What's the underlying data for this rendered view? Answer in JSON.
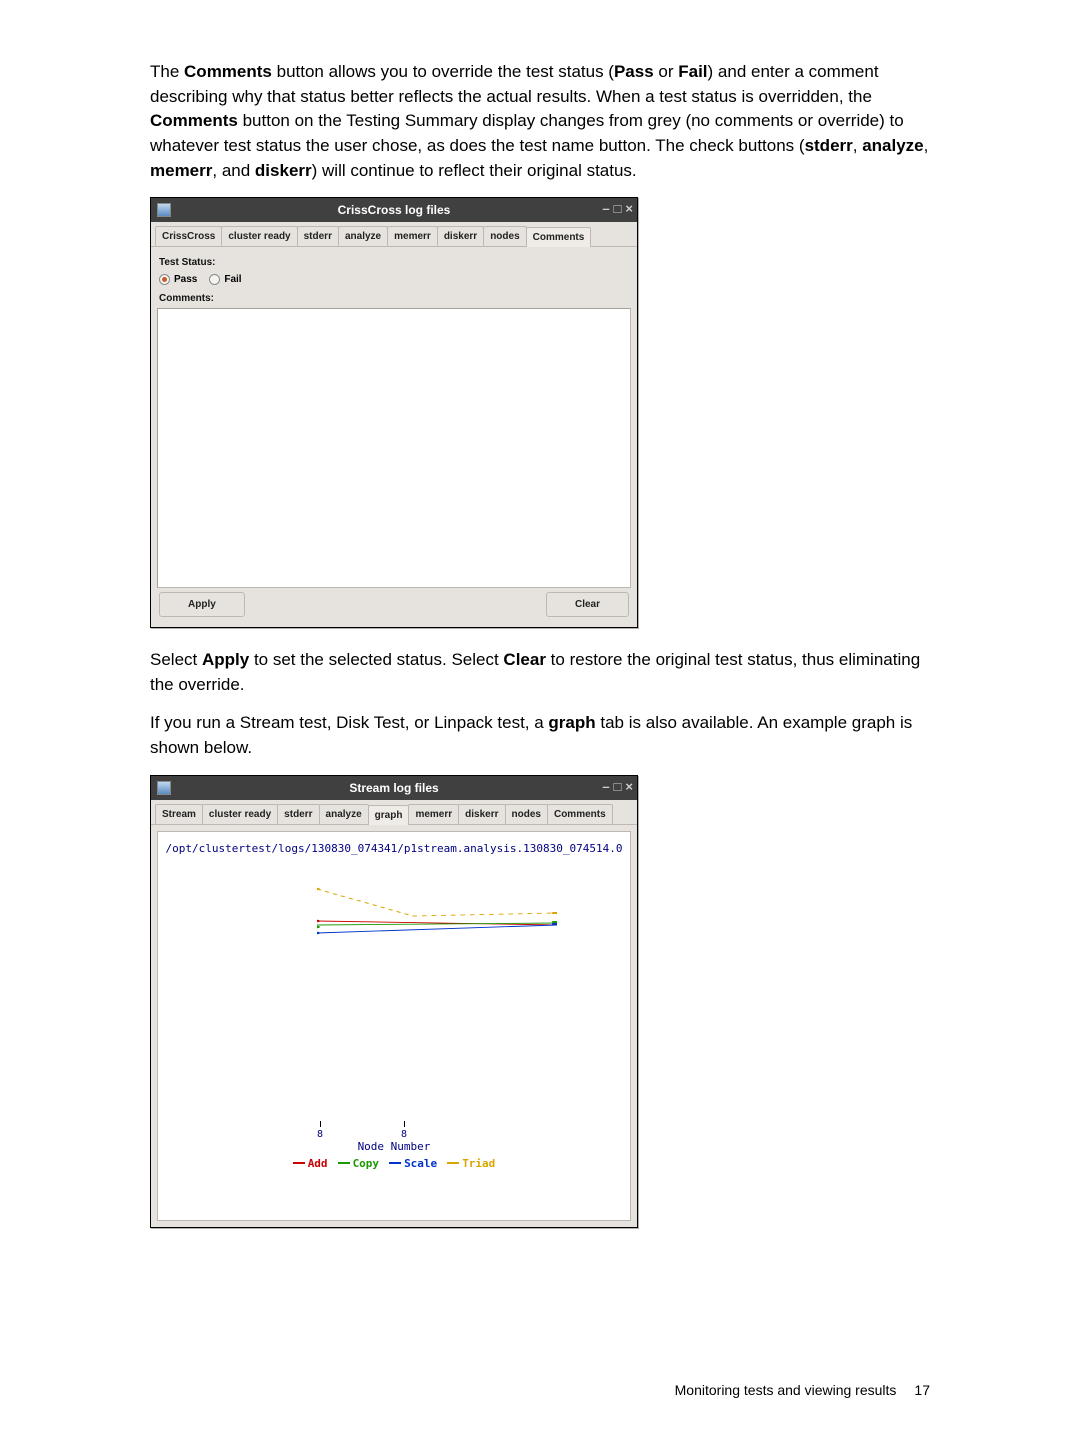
{
  "para1": {
    "t1": "The ",
    "b1": "Comments",
    "t2": " button allows you to override the test status (",
    "b2": "Pass",
    "t3": " or ",
    "b3": "Fail",
    "t4": ") and enter a comment describing why that status better reflects the actual results. When a test status is overridden, the ",
    "b4": "Comments",
    "t5": " button on the Testing Summary display changes from grey (no comments or override) to whatever test status the user chose, as does the test name button. The check buttons (",
    "b5": "stderr",
    "t6": ", ",
    "b6": "analyze",
    "t7": ", ",
    "b7": "memerr",
    "t8": ", and ",
    "b8": "diskerr",
    "t9": ") will continue to reflect their original status."
  },
  "para2": {
    "t1": "Select ",
    "b1": "Apply",
    "t2": " to set the selected status. Select ",
    "b2": "Clear",
    "t3": " to restore the original test status, thus eliminating the override."
  },
  "para3": {
    "t1": "If you run a Stream test, Disk Test, or Linpack test, a ",
    "b1": "graph",
    "t2": " tab is also available. An example graph is shown below."
  },
  "win1": {
    "title": "CrissCross log files",
    "tabs": {
      "t0": "CrissCross",
      "t1": "cluster ready",
      "t2": "stderr",
      "t3": "analyze",
      "t4": "memerr",
      "t5": "diskerr",
      "t6": "nodes",
      "t7": "Comments"
    },
    "test_status_label": "Test Status:",
    "pass_label": "Pass",
    "fail_label": "Fail",
    "comments_label": "Comments:",
    "apply_label": "Apply",
    "clear_label": "Clear"
  },
  "win2": {
    "title": "Stream log files",
    "tabs": {
      "t0": "Stream",
      "t1": "cluster ready",
      "t2": "stderr",
      "t3": "analyze",
      "t4": "graph",
      "t5": "memerr",
      "t6": "diskerr",
      "t7": "nodes",
      "t8": "Comments"
    },
    "chart_title": "/opt/clustertest/logs/130830_074341/p1stream.analysis.130830_074514.0",
    "chart": {
      "type": "line",
      "x_axis_label": "Node Number",
      "x_ticks": {
        "a": "8",
        "b": "8"
      },
      "colors": {
        "add": "#cc0000",
        "copy": "#1a9900",
        "scale": "#0033cc",
        "triad": "#d9a600"
      },
      "series": {
        "add": {
          "y_start": 38,
          "y_end": 42
        },
        "copy": {
          "y_start": 42,
          "y_end": 40
        },
        "scale": {
          "y_start": 50,
          "y_end": 42
        },
        "triad_start": {
          "x": 0,
          "y": 6
        },
        "triad_mid": {
          "x": 40,
          "y": 33
        },
        "triad_end": {
          "x": 100,
          "y": 30
        }
      },
      "line_width": 1.4
    },
    "legend": {
      "add": "Add",
      "copy": "Copy",
      "scale": "Scale",
      "triad": "Triad"
    }
  },
  "footer": {
    "section": "Monitoring tests and viewing results",
    "page": "17"
  }
}
